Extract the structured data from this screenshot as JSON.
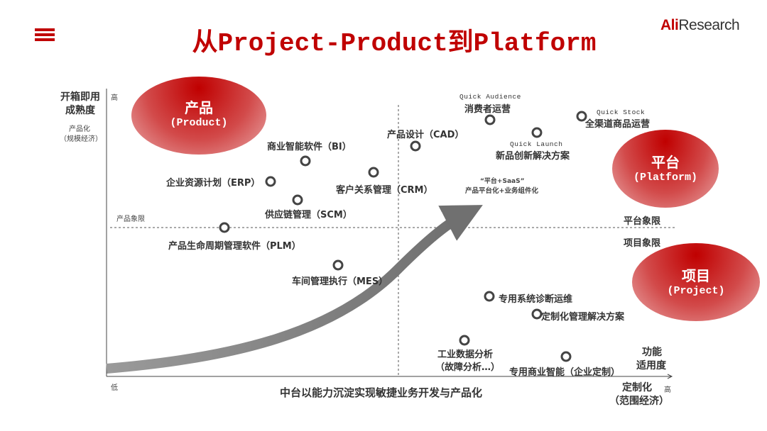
{
  "header": {
    "title": "从Project-Product到Platform",
    "logo_ali": "Ali",
    "logo_research": "Research",
    "menu_icon": "hamburger-icon"
  },
  "axes": {
    "y_title_1": "开箱即用",
    "y_title_2": "成熟度",
    "y_sub_1": "产品化",
    "y_sub_2": "（规模经济）",
    "y_high": "高",
    "x_low": "低",
    "x_high": "高",
    "x_title": "中台以能力沉淀实现敏捷业务开发与产品化",
    "x_right_1": "功能",
    "x_right_2": "适用度",
    "x_sub_1": "定制化",
    "x_sub_2": "（范围经济）"
  },
  "quadrants": {
    "product_zone": "产品象限",
    "platform_zone": "平台象限",
    "project_zone": "项目象限"
  },
  "bubbles": {
    "product": {
      "cn": "产品",
      "en": "(Product)"
    },
    "platform": {
      "cn": "平台",
      "en": "(Platform)"
    },
    "project": {
      "cn": "项目",
      "en": "(Project)"
    }
  },
  "arrow_note": {
    "line1": "“平台+SaaS”",
    "line2": "产品平台化+业务组件化"
  },
  "points": {
    "erp": "企业资源计划（ERP）",
    "bi": "商业智能软件（BI）",
    "crm": "客户关系管理（CRM）",
    "scm": "供应链管理（SCM）",
    "cad": "产品设计（CAD）",
    "plm": "产品生命周期管理软件（PLM）",
    "mes": "车间管理执行（MES）",
    "consumer_en": "Quick Audience",
    "consumer": "消费者运营",
    "launch_en": "Quick Launch",
    "launch": "新品创新解决方案",
    "stock_en": "Quick Stock",
    "stock": "全渠道商品运营",
    "diag": "专用系统诊断运维",
    "custom": "定制化管理解决方案",
    "data_1": "工业数据分析",
    "data_2": "（故障分析…）",
    "bi_custom": "专用商业智能（企业定制）"
  },
  "colors": {
    "accent": "#c00000",
    "arrow": "#7f7f7f"
  }
}
